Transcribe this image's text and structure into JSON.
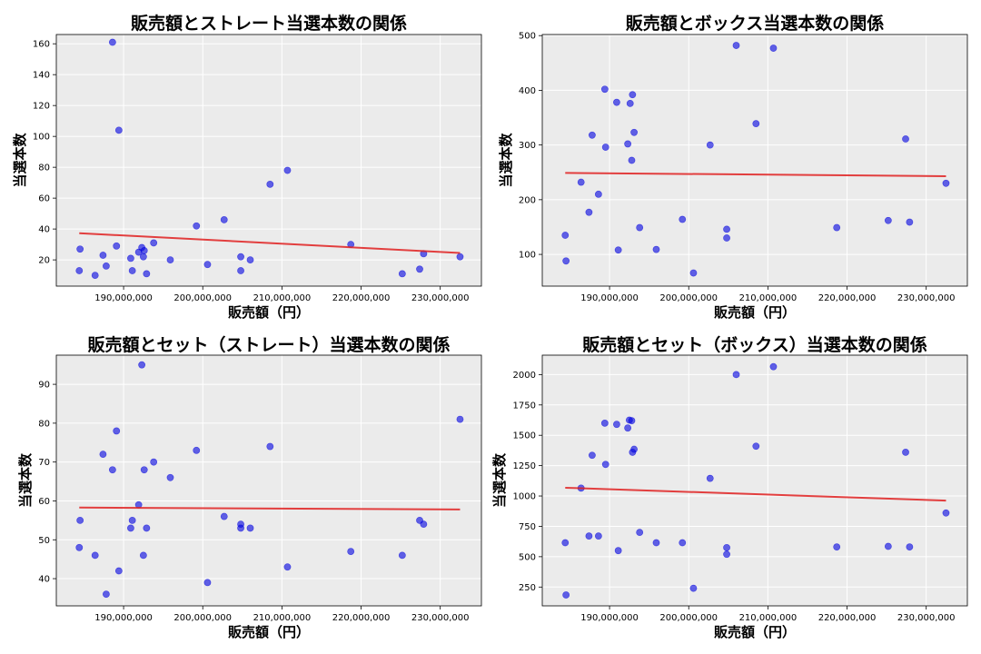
{
  "chart_data": [
    {
      "type": "scatter",
      "title": "販売額とストレート当選本数の関係",
      "xlabel": "販売額（円）",
      "ylabel": "当選本数",
      "xlim": [
        181500000,
        235200000
      ],
      "ylim": [
        3,
        166
      ],
      "xticks": [
        190000000,
        200000000,
        210000000,
        220000000,
        230000000
      ],
      "xtick_labels": [
        "190,000,000",
        "200,000,000",
        "210,000,000",
        "220,000,000",
        "230,000,000"
      ],
      "yticks": [
        20,
        40,
        60,
        80,
        100,
        120,
        140,
        160
      ],
      "ytick_labels": [
        "20",
        "40",
        "60",
        "80",
        "100",
        "120",
        "140",
        "160"
      ],
      "grid": true,
      "point_color": "#0000e0",
      "trend_color": "#e02020",
      "points": [
        [
          184400000,
          13
        ],
        [
          184500000,
          27
        ],
        [
          186400000,
          10
        ],
        [
          187400000,
          23
        ],
        [
          187800000,
          16
        ],
        [
          188600000,
          161
        ],
        [
          189100000,
          29
        ],
        [
          189400000,
          104
        ],
        [
          190900000,
          21
        ],
        [
          191100000,
          13
        ],
        [
          191900000,
          25
        ],
        [
          192300000,
          28
        ],
        [
          192500000,
          22
        ],
        [
          192600000,
          26
        ],
        [
          192900000,
          11
        ],
        [
          193800000,
          31
        ],
        [
          195900000,
          20
        ],
        [
          199200000,
          42
        ],
        [
          200600000,
          17
        ],
        [
          202700000,
          46
        ],
        [
          204800000,
          13
        ],
        [
          204800000,
          22
        ],
        [
          206000000,
          20
        ],
        [
          208500000,
          69
        ],
        [
          210700000,
          78
        ],
        [
          218700000,
          30
        ],
        [
          225200000,
          11
        ],
        [
          227400000,
          14
        ],
        [
          227900000,
          24
        ],
        [
          232500000,
          22
        ]
      ],
      "trend": [
        [
          184400000,
          37.3
        ],
        [
          232500000,
          24.5
        ]
      ]
    },
    {
      "type": "scatter",
      "title": "販売額とボックス当選本数の関係",
      "xlabel": "販売額（円）",
      "ylabel": "当選本数",
      "xlim": [
        181500000,
        235200000
      ],
      "ylim": [
        42,
        502
      ],
      "xticks": [
        190000000,
        200000000,
        210000000,
        220000000,
        230000000
      ],
      "xtick_labels": [
        "190,000,000",
        "200,000,000",
        "210,000,000",
        "220,000,000",
        "230,000,000"
      ],
      "yticks": [
        100,
        200,
        300,
        400,
        500
      ],
      "ytick_labels": [
        "100",
        "200",
        "300",
        "400",
        "500"
      ],
      "grid": true,
      "point_color": "#0000e0",
      "trend_color": "#e02020",
      "points": [
        [
          184400000,
          135
        ],
        [
          184500000,
          88
        ],
        [
          186400000,
          232
        ],
        [
          187400000,
          177
        ],
        [
          187800000,
          318
        ],
        [
          188600000,
          210
        ],
        [
          189400000,
          402
        ],
        [
          189500000,
          296
        ],
        [
          190900000,
          378
        ],
        [
          191100000,
          108
        ],
        [
          192300000,
          302
        ],
        [
          192600000,
          376
        ],
        [
          192800000,
          272
        ],
        [
          192900000,
          392
        ],
        [
          193100000,
          323
        ],
        [
          193800000,
          149
        ],
        [
          195900000,
          109
        ],
        [
          199200000,
          164
        ],
        [
          200600000,
          66
        ],
        [
          202700000,
          300
        ],
        [
          204800000,
          146
        ],
        [
          204800000,
          130
        ],
        [
          206000000,
          482
        ],
        [
          208500000,
          339
        ],
        [
          210700000,
          477
        ],
        [
          218700000,
          149
        ],
        [
          225200000,
          162
        ],
        [
          227400000,
          311
        ],
        [
          227900000,
          159
        ],
        [
          232500000,
          230
        ]
      ],
      "trend": [
        [
          184400000,
          249
        ],
        [
          232500000,
          243
        ]
      ]
    },
    {
      "type": "scatter",
      "title": "販売額とセット（ストレート）当選本数の関係",
      "xlabel": "販売額（円）",
      "ylabel": "当選本数",
      "xlim": [
        181500000,
        235200000
      ],
      "ylim": [
        33,
        97.5
      ],
      "xticks": [
        190000000,
        200000000,
        210000000,
        220000000,
        230000000
      ],
      "xtick_labels": [
        "190,000,000",
        "200,000,000",
        "210,000,000",
        "220,000,000",
        "230,000,000"
      ],
      "yticks": [
        40,
        50,
        60,
        70,
        80,
        90
      ],
      "ytick_labels": [
        "40",
        "50",
        "60",
        "70",
        "80",
        "90"
      ],
      "grid": true,
      "point_color": "#0000e0",
      "trend_color": "#e02020",
      "points": [
        [
          184400000,
          48
        ],
        [
          184500000,
          55
        ],
        [
          186400000,
          46
        ],
        [
          187400000,
          72
        ],
        [
          187800000,
          36
        ],
        [
          188600000,
          68
        ],
        [
          189100000,
          78
        ],
        [
          189400000,
          42
        ],
        [
          190900000,
          53
        ],
        [
          191100000,
          55
        ],
        [
          191900000,
          59
        ],
        [
          192300000,
          95
        ],
        [
          192500000,
          46
        ],
        [
          192600000,
          68
        ],
        [
          192900000,
          53
        ],
        [
          193800000,
          70
        ],
        [
          195900000,
          66
        ],
        [
          199200000,
          73
        ],
        [
          200600000,
          39
        ],
        [
          202700000,
          56
        ],
        [
          204800000,
          53
        ],
        [
          204800000,
          54
        ],
        [
          206000000,
          53
        ],
        [
          208500000,
          74
        ],
        [
          210700000,
          43
        ],
        [
          218700000,
          47
        ],
        [
          225200000,
          46
        ],
        [
          227400000,
          55
        ],
        [
          227900000,
          54
        ],
        [
          232500000,
          81
        ]
      ],
      "trend": [
        [
          184400000,
          58.3
        ],
        [
          232500000,
          57.8
        ]
      ]
    },
    {
      "type": "scatter",
      "title": "販売額とセット（ボックス）当選本数の関係",
      "xlabel": "販売額（円）",
      "ylabel": "当選本数",
      "xlim": [
        181500000,
        235200000
      ],
      "ylim": [
        95,
        2160
      ],
      "xticks": [
        190000000,
        200000000,
        210000000,
        220000000,
        230000000
      ],
      "xtick_labels": [
        "190,000,000",
        "200,000,000",
        "210,000,000",
        "220,000,000",
        "230,000,000"
      ],
      "yticks": [
        250,
        500,
        750,
        1000,
        1250,
        1500,
        1750,
        2000
      ],
      "ytick_labels": [
        "250",
        "500",
        "750",
        "1000",
        "1250",
        "1500",
        "1750",
        "2000"
      ],
      "grid": true,
      "point_color": "#0000e0",
      "trend_color": "#e02020",
      "points": [
        [
          184400000,
          615
        ],
        [
          184500000,
          185
        ],
        [
          186400000,
          1065
        ],
        [
          187400000,
          670
        ],
        [
          187800000,
          1335
        ],
        [
          188600000,
          670
        ],
        [
          189400000,
          1600
        ],
        [
          189500000,
          1260
        ],
        [
          190900000,
          1590
        ],
        [
          191100000,
          550
        ],
        [
          192300000,
          1560
        ],
        [
          192500000,
          1625
        ],
        [
          192800000,
          1620
        ],
        [
          192900000,
          1360
        ],
        [
          193100000,
          1385
        ],
        [
          193800000,
          700
        ],
        [
          195900000,
          615
        ],
        [
          199200000,
          615
        ],
        [
          200600000,
          240
        ],
        [
          202700000,
          1145
        ],
        [
          204800000,
          575
        ],
        [
          204800000,
          520
        ],
        [
          206000000,
          2000
        ],
        [
          208500000,
          1410
        ],
        [
          210700000,
          2065
        ],
        [
          218700000,
          580
        ],
        [
          225200000,
          585
        ],
        [
          227400000,
          1360
        ],
        [
          227900000,
          580
        ],
        [
          232500000,
          860
        ]
      ],
      "trend": [
        [
          184400000,
          1068
        ],
        [
          232500000,
          962
        ]
      ]
    }
  ]
}
